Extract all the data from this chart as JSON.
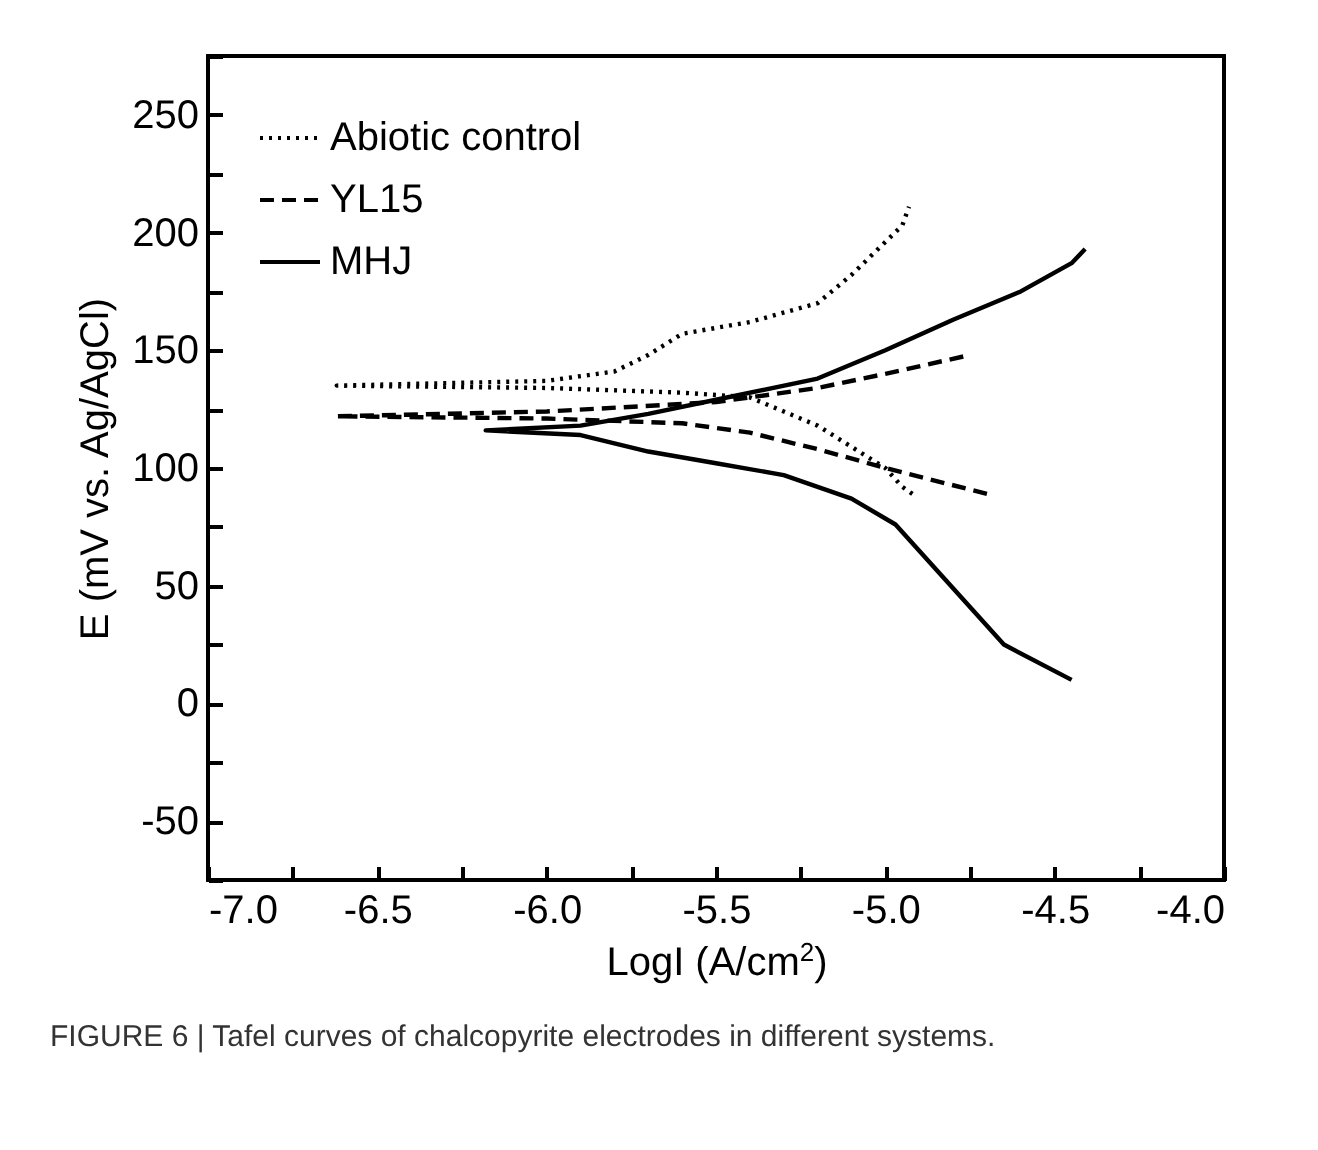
{
  "chart_data": {
    "type": "line",
    "xlabel": "LogI (A/cm$^{2}$)",
    "ylabel": "E (mV vs. Ag/AgCl)",
    "annotations": [
      "FIGURE 6 | Tafel curves of chalcopyrite electrodes in different systems."
    ],
    "xlim": [
      -7.0,
      -4.0
    ],
    "ylim": [
      -75,
      275
    ],
    "xticks": [
      {
        "value": -7.0,
        "label": "-7.0"
      },
      {
        "value": -6.75,
        "label": null
      },
      {
        "value": -6.5,
        "label": "-6.5"
      },
      {
        "value": -6.25,
        "label": null
      },
      {
        "value": -6.0,
        "label": "-6.0"
      },
      {
        "value": -5.75,
        "label": null
      },
      {
        "value": -5.5,
        "label": "-5.5"
      },
      {
        "value": -5.25,
        "label": null
      },
      {
        "value": -5.0,
        "label": "-5.0"
      },
      {
        "value": -4.75,
        "label": null
      },
      {
        "value": -4.5,
        "label": "-4.5"
      },
      {
        "value": -4.25,
        "label": null
      },
      {
        "value": -4.0,
        "label": "-4.0"
      }
    ],
    "yticks": [
      {
        "value": -75,
        "label": null
      },
      -50,
      {
        "value": -25,
        "label": null
      },
      0,
      {
        "value": 25,
        "label": null
      },
      50,
      {
        "value": 75,
        "label": null
      },
      100,
      {
        "value": 125,
        "label": null
      },
      150,
      {
        "value": 175,
        "label": null
      },
      200,
      {
        "value": 225,
        "label": null
      },
      250,
      {
        "value": 275,
        "label": null
      }
    ],
    "legend": "top left",
    "marker": "none",
    "grid": false,
    "series": [
      {
        "name": "Abiotic control",
        "color": "#000000",
        "line_style": "dotted",
        "x": [
          -4.92,
          -4.95,
          -5.0,
          -5.2,
          -5.4,
          -5.6,
          -6.0,
          -6.62,
          -6.0,
          -5.8,
          -5.7,
          -5.6,
          -5.4,
          -5.2,
          -5.1,
          -4.95,
          -4.93
        ],
        "values": [
          89,
          92,
          100,
          118,
          130,
          132,
          134,
          135,
          137,
          141,
          148,
          157,
          162,
          170,
          182,
          203,
          211
        ]
      },
      {
        "name": "YL15",
        "color": "#000000",
        "line_style": "dashed",
        "x": [
          -4.7,
          -5.0,
          -5.2,
          -5.4,
          -5.6,
          -6.0,
          -6.62,
          -6.0,
          -5.5,
          -5.2,
          -5.0,
          -4.75
        ],
        "values": [
          89,
          100,
          108,
          115,
          119,
          121,
          122,
          124,
          128,
          134,
          140,
          148
        ]
      },
      {
        "name": "MHJ",
        "color": "#000000",
        "line_style": "solid",
        "x": [
          -4.45,
          -4.65,
          -4.97,
          -5.1,
          -5.3,
          -5.5,
          -5.7,
          -5.9,
          -6.18,
          -5.9,
          -5.7,
          -5.5,
          -5.2,
          -5.0,
          -4.8,
          -4.6,
          -4.45,
          -4.41
        ],
        "values": [
          10,
          25,
          76,
          87,
          97,
          102,
          107,
          114,
          116,
          118,
          123,
          129,
          138,
          150,
          163,
          175,
          187,
          193
        ]
      }
    ]
  }
}
